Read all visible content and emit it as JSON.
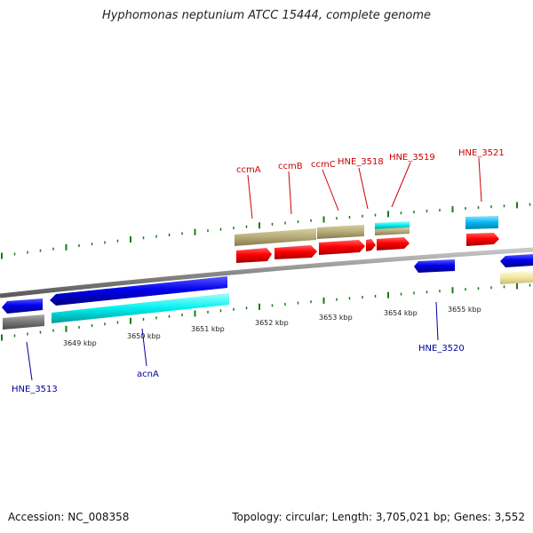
{
  "title": "Hyphomonas neptunium ATCC 15444, complete genome",
  "accession_text": "Accession: NC_008358",
  "summary_text": "Topology: circular; Length: 3,705,021 bp; Genes: 3,552",
  "colors": {
    "backbone": "#8a8a8a",
    "tick": "#1a7a1a",
    "forward_cds": "#ff0000",
    "reverse_cds": "#0000ff",
    "forward_feature": "#b8ad78",
    "reverse_feature": "#00ffff",
    "forward_label": "#cc0000",
    "reverse_label": "#000099",
    "pale_feature": "#f0e6a0",
    "gray_feature": "#777777"
  },
  "scale_labels": [
    "3649 kbp",
    "3650 kbp",
    "3651 kbp",
    "3652 kbp",
    "3653 kbp",
    "3654 kbp",
    "3655 kbp"
  ],
  "forward_genes": [
    {
      "name": "ccmA"
    },
    {
      "name": "ccmB"
    },
    {
      "name": "ccmC"
    },
    {
      "name": "HNE_3518"
    },
    {
      "name": "HNE_3519"
    },
    {
      "name": "HNE_3521"
    }
  ],
  "reverse_genes": [
    {
      "name": "HNE_3513"
    },
    {
      "name": "acnA"
    },
    {
      "name": "HNE_3520"
    }
  ]
}
